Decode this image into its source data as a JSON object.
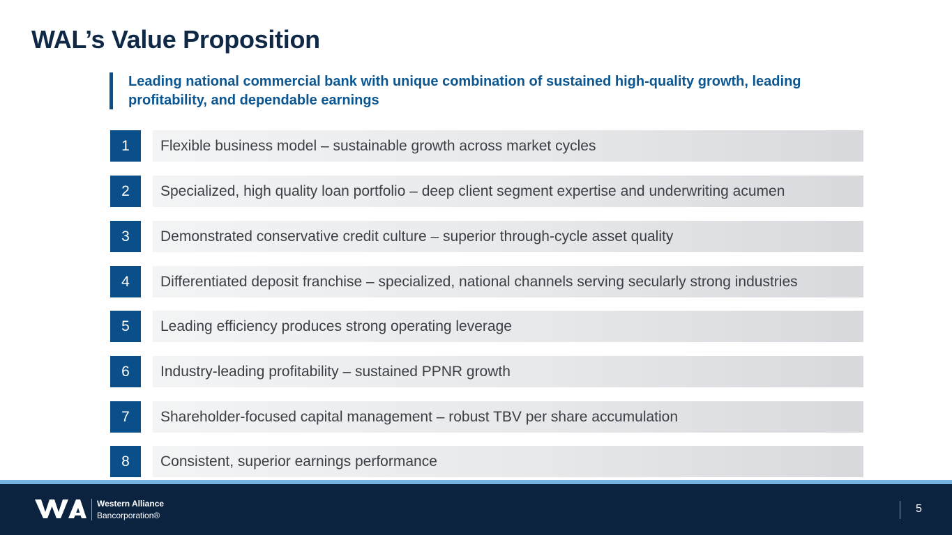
{
  "slide": {
    "title": "WAL’s Value Proposition",
    "subtitle": "Leading national commercial bank with unique combination of sustained high-quality growth, leading profitability, and dependable earnings",
    "items": [
      {
        "number": "1",
        "text": "Flexible business model – sustainable growth across market cycles"
      },
      {
        "number": "2",
        "text": "Specialized, high quality loan portfolio – deep client segment expertise and underwriting acumen"
      },
      {
        "number": "3",
        "text": "Demonstrated conservative credit culture – superior through-cycle asset quality"
      },
      {
        "number": "4",
        "text": "Differentiated deposit franchise – specialized, national channels serving secularly strong industries"
      },
      {
        "number": "5",
        "text": "Leading efficiency produces strong operating leverage"
      },
      {
        "number": "6",
        "text": "Industry-leading profitability – sustained PPNR growth"
      },
      {
        "number": "7",
        "text": "Shareholder-focused capital management – robust TBV per share accumulation"
      },
      {
        "number": "8",
        "text": "Consistent, superior earnings performance"
      }
    ]
  },
  "footer": {
    "logo_line1": "Western Alliance",
    "logo_line2": "Bancorporation®",
    "logo_icon": "wa-logo-icon",
    "page_number": "5"
  },
  "colors": {
    "title": "#0f2845",
    "accent_blue": "#0b4f8a",
    "subtitle_blue": "#0b5691",
    "footer_navy": "#0c2340",
    "footer_accent": "#73b2e1"
  }
}
